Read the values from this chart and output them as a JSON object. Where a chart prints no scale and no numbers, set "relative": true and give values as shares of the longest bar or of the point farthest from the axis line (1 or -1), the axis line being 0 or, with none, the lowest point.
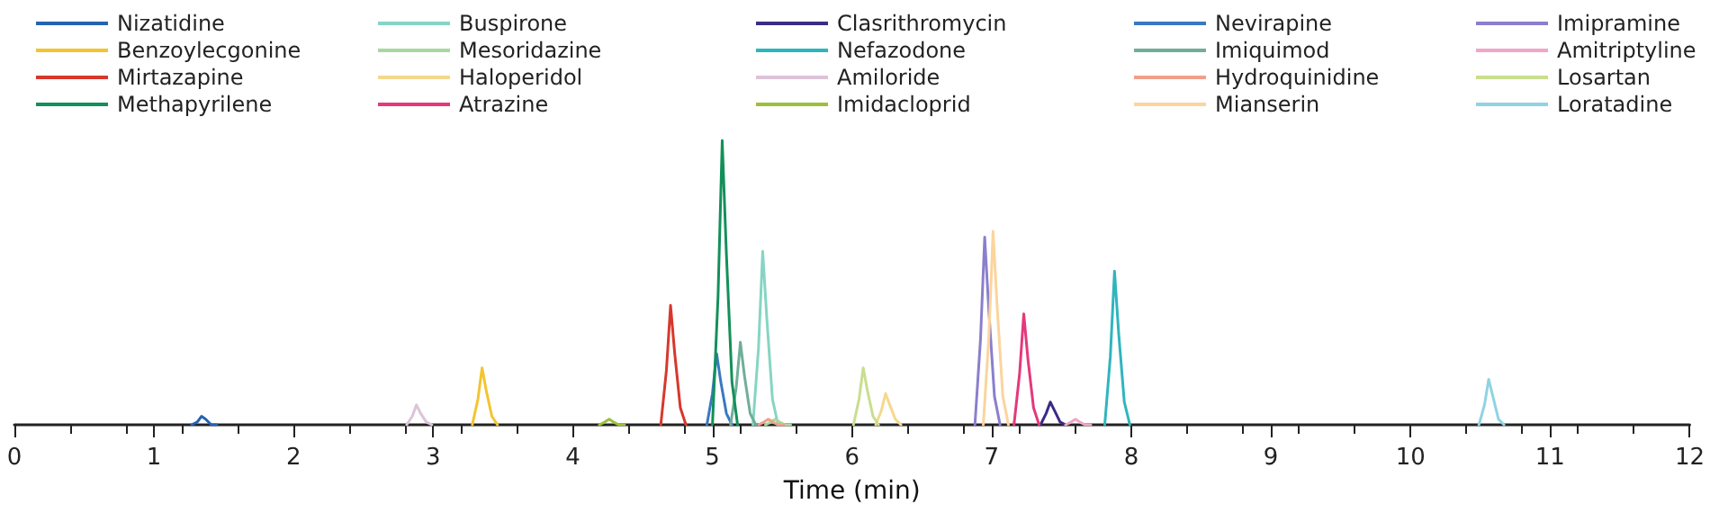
{
  "chart_data": {
    "type": "line",
    "xlabel": "Time (min)",
    "relative": true,
    "xlim": [
      0,
      12
    ],
    "xticks": [
      0,
      1,
      2,
      3,
      4,
      5,
      6,
      7,
      8,
      9,
      10,
      11,
      12
    ],
    "grid": false,
    "legend": "top",
    "marker": "none",
    "line_style": "solid",
    "series": [
      {
        "name": "Nizatidine",
        "color": "#2563b0",
        "x": [
          1.27,
          1.31,
          1.34,
          1.37,
          1.41,
          1.45
        ],
        "values": [
          0,
          0.01,
          0.03,
          0.02,
          0,
          0
        ]
      },
      {
        "name": "Buspirone",
        "color": "#86d5c4",
        "x": [
          5.29,
          5.33,
          5.36,
          5.39,
          5.43,
          5.47
        ],
        "values": [
          0,
          0.27,
          0.61,
          0.37,
          0.09,
          0
        ]
      },
      {
        "name": "Clasrithromycin",
        "color": "#3b2a86",
        "x": [
          7.35,
          7.39,
          7.42,
          7.45,
          7.49,
          7.53
        ],
        "values": [
          0,
          0.04,
          0.08,
          0.05,
          0.01,
          0
        ]
      },
      {
        "name": "Nevirapine",
        "color": "#3a78c2",
        "x": [
          4.96,
          5.0,
          5.03,
          5.06,
          5.1,
          5.14
        ],
        "values": [
          0,
          0.11,
          0.25,
          0.15,
          0.04,
          0
        ]
      },
      {
        "name": "Imipramine",
        "color": "#8a7fcc",
        "x": [
          6.88,
          6.92,
          6.95,
          6.98,
          7.02,
          7.06
        ],
        "values": [
          0,
          0.3,
          0.66,
          0.4,
          0.1,
          0
        ]
      },
      {
        "name": "Benzoylecgonine",
        "color": "#f4c430",
        "x": [
          3.28,
          3.32,
          3.35,
          3.38,
          3.42,
          3.46
        ],
        "values": [
          0,
          0.09,
          0.2,
          0.12,
          0.03,
          0
        ]
      },
      {
        "name": "Mesoridazine",
        "color": "#a8d8a0",
        "x": [
          5.38,
          5.42,
          5.45,
          5.48,
          5.52,
          5.56
        ],
        "values": [
          0,
          0.01,
          0.02,
          0.01,
          0,
          0
        ]
      },
      {
        "name": "Nefazodone",
        "color": "#2fb5be",
        "x": [
          7.81,
          7.85,
          7.88,
          7.91,
          7.95,
          7.99
        ],
        "values": [
          0,
          0.24,
          0.54,
          0.32,
          0.08,
          0
        ]
      },
      {
        "name": "Imiquimod",
        "color": "#6fae9a",
        "x": [
          5.13,
          5.17,
          5.2,
          5.23,
          5.27,
          5.31
        ],
        "values": [
          0,
          0.13,
          0.29,
          0.17,
          0.04,
          0
        ]
      },
      {
        "name": "Amitriptyline",
        "color": "#f0a6c8",
        "x": [
          7.53,
          7.57,
          7.6,
          7.63,
          7.67,
          7.71
        ],
        "values": [
          0,
          0.01,
          0.02,
          0.01,
          0,
          0
        ]
      },
      {
        "name": "Mirtazapine",
        "color": "#d8382c",
        "x": [
          4.63,
          4.67,
          4.7,
          4.73,
          4.77,
          4.81
        ],
        "values": [
          0,
          0.19,
          0.42,
          0.25,
          0.06,
          0
        ]
      },
      {
        "name": "Haloperidol",
        "color": "#f5d88e",
        "x": [
          6.17,
          6.21,
          6.24,
          6.27,
          6.31,
          6.35
        ],
        "values": [
          0,
          0.05,
          0.11,
          0.07,
          0.02,
          0
        ]
      },
      {
        "name": "Amiloride",
        "color": "#dcc4d8",
        "x": [
          2.81,
          2.85,
          2.88,
          2.91,
          2.95,
          2.99
        ],
        "values": [
          0,
          0.03,
          0.07,
          0.04,
          0.01,
          0
        ]
      },
      {
        "name": "Hydroquinidine",
        "color": "#f0a08a",
        "x": [
          5.33,
          5.37,
          5.4,
          5.43,
          5.47,
          5.51
        ],
        "values": [
          0,
          0.01,
          0.02,
          0.01,
          0,
          0
        ]
      },
      {
        "name": "Losartan",
        "color": "#c9de8e",
        "x": [
          6.01,
          6.05,
          6.08,
          6.11,
          6.15,
          6.19
        ],
        "values": [
          0,
          0.09,
          0.2,
          0.12,
          0.03,
          0
        ]
      },
      {
        "name": "Methapyrilene",
        "color": "#13905a",
        "x": [
          5.0,
          5.04,
          5.07,
          5.1,
          5.14,
          5.18
        ],
        "values": [
          0,
          0.45,
          1,
          0.6,
          0.15,
          0
        ]
      },
      {
        "name": "Atrazine",
        "color": "#e5387c",
        "x": [
          7.16,
          7.2,
          7.23,
          7.26,
          7.3,
          7.34
        ],
        "values": [
          0,
          0.18,
          0.39,
          0.23,
          0.06,
          0
        ]
      },
      {
        "name": "Imidacloprid",
        "color": "#9cbf3c",
        "x": [
          4.19,
          4.23,
          4.26,
          4.29,
          4.33,
          4.37
        ],
        "values": [
          0,
          0.01,
          0.02,
          0.01,
          0,
          0
        ]
      },
      {
        "name": "Mianserin",
        "color": "#fcd49c",
        "x": [
          6.94,
          6.98,
          7.01,
          7.04,
          7.08,
          7.12
        ],
        "values": [
          0,
          0.31,
          0.68,
          0.41,
          0.1,
          0
        ]
      },
      {
        "name": "Loratadine",
        "color": "#8fd3e3",
        "x": [
          10.49,
          10.53,
          10.56,
          10.59,
          10.63,
          10.67
        ],
        "values": [
          0,
          0.07,
          0.16,
          0.1,
          0.02,
          0
        ]
      }
    ]
  }
}
